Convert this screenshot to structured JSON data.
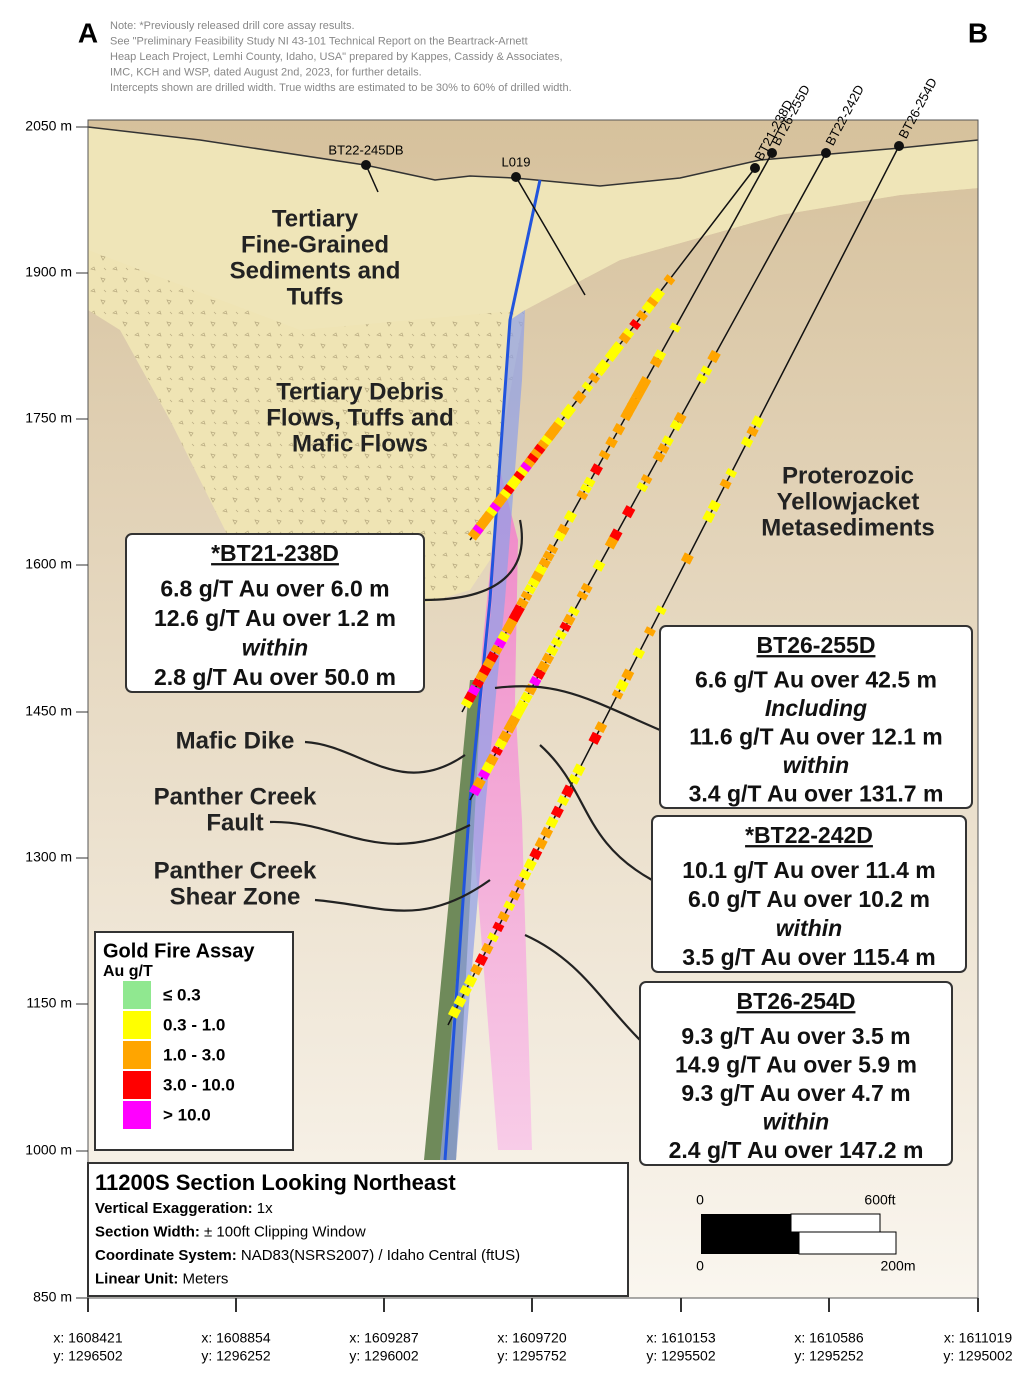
{
  "corner_labels": [
    "A",
    "B"
  ],
  "notes": [
    "Note: *Previously released drill core assay results.",
    "See \"Preliminary Feasibility Study NI 43-101 Technical Report on the Beartrack-Arnett",
    "Heap Leach Project, Lemhi County, Idaho, USA\" prepared by Kappes, Cassidy & Associates,",
    "IMC, KCH and WSP, dated August 2nd, 2023, for further details.",
    "Intercepts shown are drilled width. True widths are estimated to be 30% to 60% of drilled width."
  ],
  "elevation_labels": [
    "2050 m",
    "1900 m",
    "1750 m",
    "1600 m",
    "1450 m",
    "1300 m",
    "1150 m",
    "1000 m",
    "850 m"
  ],
  "coordinate_labels": [
    [
      "x: 1608421",
      "y: 1296502"
    ],
    [
      "x: 1608854",
      "y: 1296252"
    ],
    [
      "x: 1609287",
      "y: 1296002"
    ],
    [
      "x: 1609720",
      "y: 1295752"
    ],
    [
      "x: 1610153",
      "y: 1295502"
    ],
    [
      "x: 1610586",
      "y: 1295252"
    ],
    [
      "x: 1611019",
      "y: 1295002"
    ]
  ],
  "drillholes": [
    "BT22-245DB",
    "L019",
    "BT21-238D",
    "BT26-255D",
    "BT22-242D",
    "BT26-254D"
  ],
  "units": [
    [
      "Tertiary",
      "Fine-Grained",
      "Sediments and",
      "Tuffs"
    ],
    [
      "Tertiary Debris",
      "Flows, Tuffs and",
      "Mafic Flows"
    ],
    [
      "Proterozoic",
      "Yellowjacket",
      "Metasediments"
    ]
  ],
  "structures": [
    [
      "Mafic Dike"
    ],
    [
      "Panther Creek",
      "Fault"
    ],
    [
      "Panther Creek",
      "Shear Zone"
    ]
  ],
  "callouts": [
    {
      "title": "*BT21-238D",
      "lines": [
        "6.8 g/T Au over 6.0 m",
        "12.6 g/T Au over 1.2 m",
        {
          "text": "within",
          "style": "italic"
        },
        "2.8 g/T Au over 50.0 m"
      ]
    },
    {
      "title": "BT26-255D",
      "lines": [
        "6.6 g/T Au over 42.5 m",
        {
          "text": "Including",
          "style": "italic"
        },
        "11.6 g/T Au over 12.1 m",
        {
          "text": "within",
          "style": "italic"
        },
        "3.4 g/T Au over 131.7 m"
      ]
    },
    {
      "title": "*BT22-242D",
      "lines": [
        "10.1 g/T Au over 11.4 m",
        "6.0 g/T Au over 10.2 m",
        {
          "text": "within",
          "style": "italic"
        },
        "3.5 g/T Au over 115.4 m"
      ]
    },
    {
      "title": "BT26-254D",
      "lines": [
        "9.3 g/T Au over 3.5 m",
        "14.9 g/T Au over 5.9 m",
        "9.3 g/T Au over 4.7 m",
        {
          "text": "within",
          "style": "italic"
        },
        "2.4 g/T Au over 147.2 m"
      ]
    }
  ],
  "legend": {
    "title": "Gold Fire Assay",
    "subtitle": "Au g/T",
    "items": [
      {
        "label": "≤ 0.3",
        "color": "#90e890"
      },
      {
        "label": "0.3 - 1.0",
        "color": "#ffff00"
      },
      {
        "label": "1.0 - 3.0",
        "color": "#ffa500"
      },
      {
        "label": "3.0 - 10.0",
        "color": "#ff0000"
      },
      {
        "label": "> 10.0",
        "color": "#ff00ff"
      }
    ]
  },
  "info": {
    "title": "11200S Section Looking Northeast",
    "lines": [
      {
        "label": "Vertical Exaggeration:",
        "value": "1x"
      },
      {
        "label": "Section Width:",
        "value": "± 100ft Clipping Window"
      },
      {
        "label": "Coordinate System:",
        "value": "NAD83(NSRS2007) / Idaho Central (ftUS)"
      },
      {
        "label": "Linear Unit:",
        "value": "Meters"
      }
    ]
  },
  "scale_bar": {
    "feet": [
      "0",
      "600ft"
    ],
    "meters": [
      "0",
      "200m"
    ]
  }
}
